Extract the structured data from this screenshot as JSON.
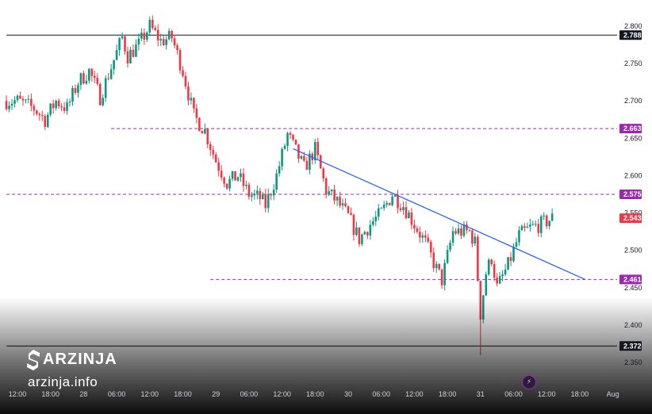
{
  "watermark": {
    "brand": "ARZINJA",
    "domain": "arzinja.info"
  },
  "event_icon": "lightning-bolt-icon",
  "chart_data": {
    "type": "candlestick",
    "y_axis": {
      "ylim": [
        2.33,
        2.83
      ],
      "ticks": [
        "2.800",
        "2.750",
        "2.700",
        "2.650",
        "2.600",
        "2.550",
        "2.500",
        "2.450",
        "2.400",
        "2.350"
      ]
    },
    "x_axis": {
      "ticks": [
        {
          "label": "12:00",
          "t": 0
        },
        {
          "label": "18:00",
          "t": 6
        },
        {
          "label": "28",
          "t": 12
        },
        {
          "label": "06:00",
          "t": 18
        },
        {
          "label": "12:00",
          "t": 24
        },
        {
          "label": "18:00",
          "t": 30
        },
        {
          "label": "29",
          "t": 36
        },
        {
          "label": "06:00",
          "t": 42
        },
        {
          "label": "12:00",
          "t": 48
        },
        {
          "label": "18:00",
          "t": 54
        },
        {
          "label": "30",
          "t": 60
        },
        {
          "label": "06:00",
          "t": 66
        },
        {
          "label": "12:00",
          "t": 72
        },
        {
          "label": "18:00",
          "t": 78
        },
        {
          "label": "31",
          "t": 84
        },
        {
          "label": "06:00",
          "t": 90
        },
        {
          "label": "12:00",
          "t": 96
        },
        {
          "label": "18:00",
          "t": 102
        },
        {
          "label": "Aug",
          "t": 108
        }
      ]
    },
    "levels": [
      {
        "value": 2.788,
        "label": "2.788",
        "style": "solid",
        "color": "#131722",
        "x_start_t": -2
      },
      {
        "value": 2.663,
        "label": "2.663",
        "style": "dashed",
        "color": "#9c27b0",
        "x_start_t": 17
      },
      {
        "value": 2.575,
        "label": "2.575",
        "style": "dashed",
        "color": "#9c27b0",
        "x_start_t": -2
      },
      {
        "value": 2.461,
        "label": "2.461",
        "style": "dashed",
        "color": "#9c27b0",
        "x_start_t": 35
      },
      {
        "value": 2.372,
        "label": "2.372",
        "style": "solid",
        "color": "#131722",
        "x_start_t": -2
      }
    ],
    "last_price": {
      "value": 2.543,
      "label": "2.543",
      "color": "#f23645"
    },
    "trendline": {
      "from": {
        "t": 50,
        "v": 2.636
      },
      "to": {
        "t": 103,
        "v": 2.461
      },
      "color": "#2962ff"
    },
    "bull_color": "#089981",
    "bear_color": "#f23645",
    "anchors": [
      [
        -2,
        2.7
      ],
      [
        0,
        2.7
      ],
      [
        3,
        2.69
      ],
      [
        5,
        2.675
      ],
      [
        7,
        2.7
      ],
      [
        9,
        2.69
      ],
      [
        11,
        2.725
      ],
      [
        13,
        2.74
      ],
      [
        15,
        2.705
      ],
      [
        17,
        2.745
      ],
      [
        19,
        2.785
      ],
      [
        20,
        2.76
      ],
      [
        22,
        2.775
      ],
      [
        24,
        2.8
      ],
      [
        26,
        2.78
      ],
      [
        28,
        2.785
      ],
      [
        30,
        2.74
      ],
      [
        32,
        2.68
      ],
      [
        34,
        2.66
      ],
      [
        36,
        2.62
      ],
      [
        38,
        2.59
      ],
      [
        40,
        2.6
      ],
      [
        42,
        2.575
      ],
      [
        44,
        2.57
      ],
      [
        45,
        2.56
      ],
      [
        47,
        2.6
      ],
      [
        49,
        2.655
      ],
      [
        50,
        2.64
      ],
      [
        52,
        2.61
      ],
      [
        54,
        2.635
      ],
      [
        56,
        2.58
      ],
      [
        58,
        2.565
      ],
      [
        60,
        2.545
      ],
      [
        62,
        2.515
      ],
      [
        64,
        2.535
      ],
      [
        66,
        2.55
      ],
      [
        68,
        2.575
      ],
      [
        70,
        2.56
      ],
      [
        72,
        2.535
      ],
      [
        74,
        2.51
      ],
      [
        76,
        2.475
      ],
      [
        77,
        2.46
      ],
      [
        79,
        2.525
      ],
      [
        82,
        2.525
      ],
      [
        83,
        2.51
      ],
      [
        84,
        2.415
      ],
      [
        85,
        2.47
      ],
      [
        86,
        2.49
      ],
      [
        87,
        2.45
      ],
      [
        89,
        2.48
      ],
      [
        91,
        2.52
      ],
      [
        93,
        2.53
      ],
      [
        95,
        2.535
      ],
      [
        97,
        2.543
      ]
    ],
    "spike_low": {
      "t": 84,
      "v": 2.36
    }
  }
}
